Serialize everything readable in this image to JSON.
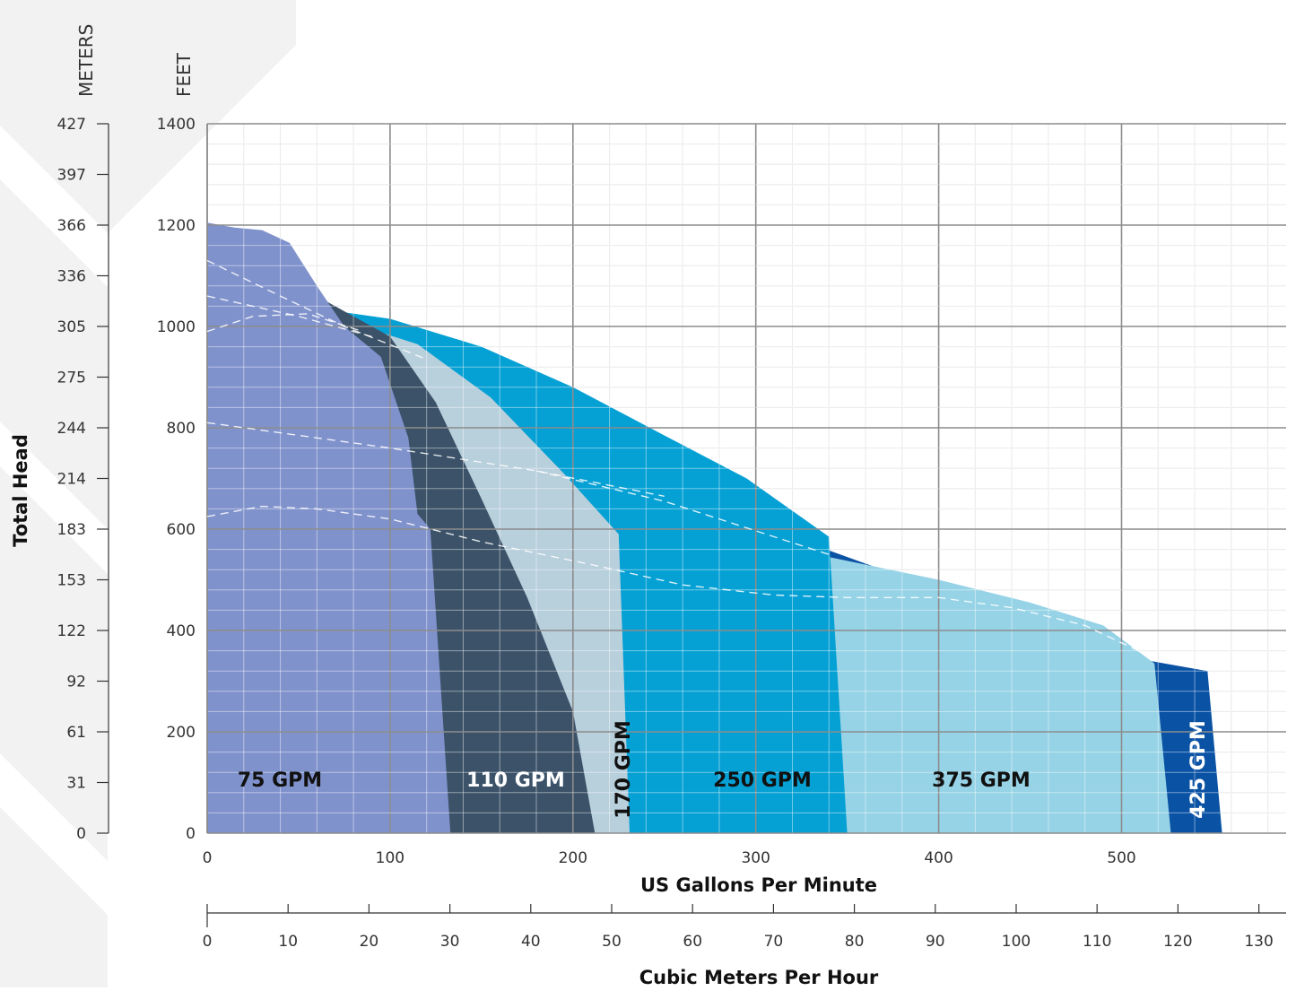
{
  "chart_data": {
    "type": "area",
    "title": "",
    "ylabel": "Total Head",
    "xlabel": "US Gallons Per Minute",
    "x2label": "Cubic Meters Per Hour",
    "y_units_left": "METERS",
    "y_units_right": "FEET",
    "xlim": [
      0,
      590
    ],
    "ylim": [
      0,
      1400
    ],
    "x_ticks": [
      "0",
      "100",
      "200",
      "300",
      "400",
      "500"
    ],
    "y_ticks_feet": [
      "0",
      "200",
      "400",
      "600",
      "800",
      "1000",
      "1200",
      "1400"
    ],
    "y_ticks_meters": [
      "0",
      "31",
      "61",
      "92",
      "122",
      "153",
      "183",
      "214",
      "244",
      "275",
      "305",
      "336",
      "366",
      "397",
      "427"
    ],
    "x2_ticks": [
      "0",
      "10",
      "20",
      "30",
      "40",
      "50",
      "60",
      "70",
      "80",
      "90",
      "100",
      "110",
      "120",
      "130"
    ],
    "grid": true,
    "series": [
      {
        "name": "425 GPM",
        "color": "#0a52a4",
        "label_color": "#ffffff",
        "points": [
          [
            0,
            1000
          ],
          [
            500,
            350
          ],
          [
            547,
            320
          ],
          [
            555,
            0
          ],
          [
            0,
            0
          ]
        ]
      },
      {
        "name": "375 GPM",
        "color": "#96d3e6",
        "label_color": "#111111",
        "points": [
          [
            0,
            1000
          ],
          [
            340,
            545
          ],
          [
            400,
            500
          ],
          [
            450,
            455
          ],
          [
            490,
            410
          ],
          [
            518,
            335
          ],
          [
            527,
            0
          ],
          [
            0,
            0
          ]
        ]
      },
      {
        "name": "250 GPM",
        "color": "#05a0d4",
        "label_color": "#111111",
        "points": [
          [
            75,
            1028
          ],
          [
            100,
            1015
          ],
          [
            150,
            960
          ],
          [
            200,
            880
          ],
          [
            250,
            785
          ],
          [
            295,
            700
          ],
          [
            340,
            585
          ],
          [
            350,
            0
          ],
          [
            0,
            0
          ],
          [
            0,
            1030
          ]
        ]
      },
      {
        "name": "170 GPM",
        "color": "#b8cfdc",
        "label_color": "#111111",
        "points": [
          [
            85,
            1000
          ],
          [
            115,
            965
          ],
          [
            155,
            860
          ],
          [
            195,
            710
          ],
          [
            225,
            590
          ],
          [
            231,
            0
          ],
          [
            0,
            0
          ],
          [
            0,
            1000
          ]
        ]
      },
      {
        "name": "110 GPM",
        "color": "#3b5268",
        "label_color": "#ffffff",
        "points": [
          [
            65,
            1050
          ],
          [
            100,
            980
          ],
          [
            125,
            850
          ],
          [
            150,
            660
          ],
          [
            175,
            465
          ],
          [
            200,
            240
          ],
          [
            212,
            0
          ],
          [
            0,
            0
          ],
          [
            0,
            1050
          ]
        ]
      },
      {
        "name": "75 GPM",
        "color": "#8092cc",
        "label_color": "#111111",
        "points": [
          [
            0,
            1205
          ],
          [
            15,
            1195
          ],
          [
            30,
            1190
          ],
          [
            45,
            1165
          ],
          [
            60,
            1080
          ],
          [
            75,
            1000
          ],
          [
            95,
            940
          ],
          [
            110,
            780
          ],
          [
            115,
            630
          ],
          [
            122,
            600
          ],
          [
            133,
            0
          ],
          [
            0,
            0
          ]
        ]
      }
    ],
    "dashed_curves": [
      [
        [
          0,
          1130
        ],
        [
          40,
          1060
        ],
        [
          75,
          1000
        ],
        [
          120,
          935
        ]
      ],
      [
        [
          0,
          1060
        ],
        [
          50,
          1020
        ],
        [
          90,
          980
        ]
      ],
      [
        [
          0,
          990
        ],
        [
          25,
          1020
        ],
        [
          55,
          1025
        ],
        [
          85,
          990
        ]
      ],
      [
        [
          0,
          810
        ],
        [
          100,
          760
        ],
        [
          180,
          715
        ],
        [
          250,
          665
        ]
      ],
      [
        [
          0,
          625
        ],
        [
          30,
          645
        ],
        [
          60,
          640
        ],
        [
          100,
          620
        ],
        [
          150,
          575
        ],
        [
          210,
          530
        ],
        [
          260,
          490
        ],
        [
          310,
          470
        ],
        [
          350,
          465
        ],
        [
          400,
          465
        ],
        [
          440,
          445
        ],
        [
          480,
          410
        ],
        [
          515,
          350
        ]
      ],
      [
        [
          180,
          715
        ],
        [
          250,
          655
        ],
        [
          340,
          550
        ]
      ]
    ]
  }
}
